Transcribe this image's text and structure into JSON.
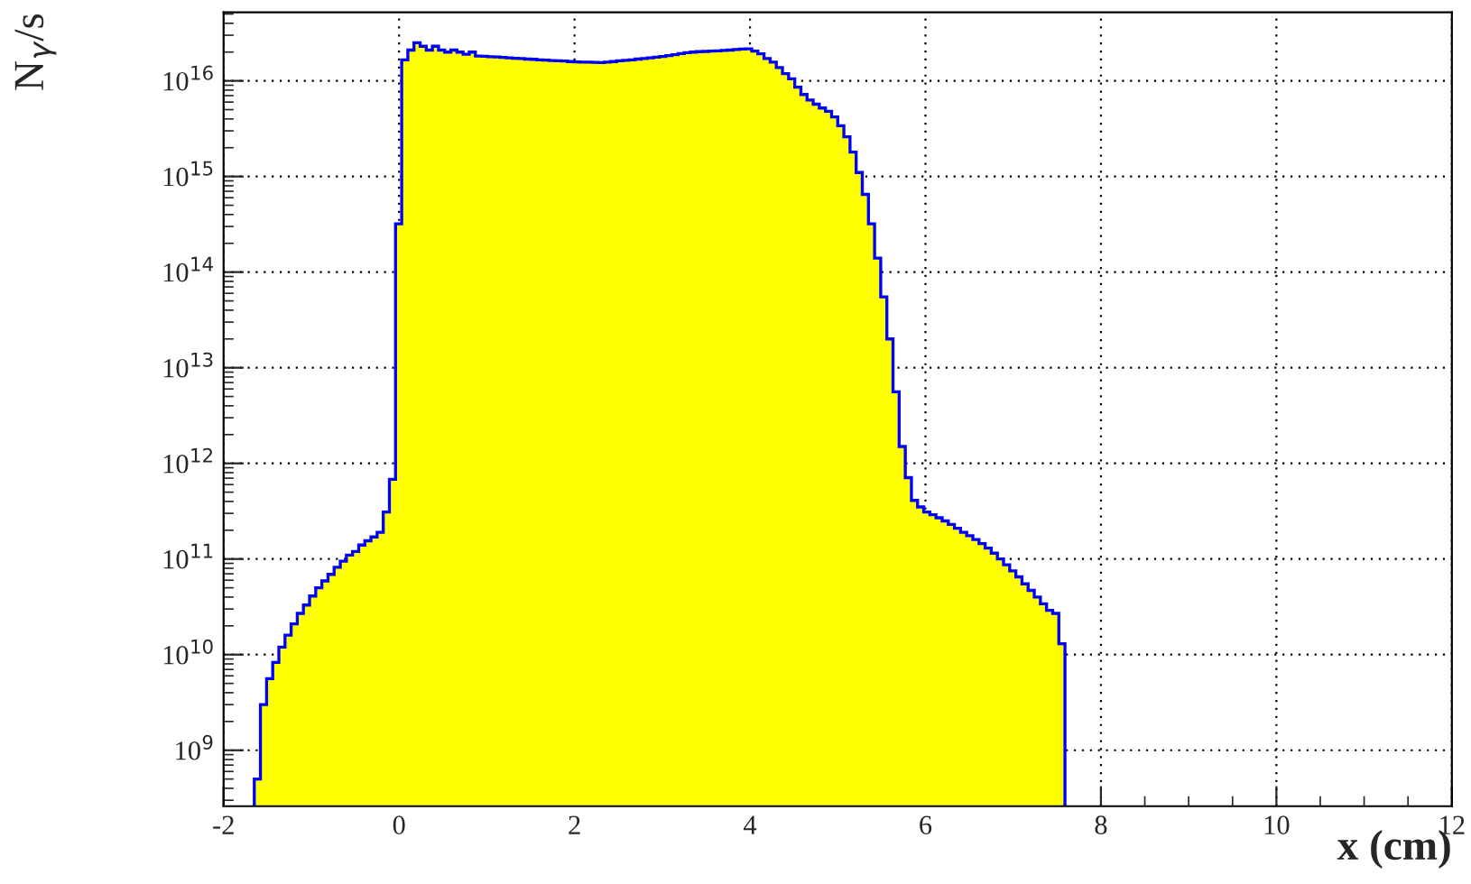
{
  "chart_data": {
    "type": "histogram",
    "xlabel": "x (cm)",
    "ylabel": "N$_{γ}$/s",
    "bins": [
      -1.65,
      -1.58,
      -1.51,
      -1.44,
      -1.37,
      -1.3,
      -1.23,
      -1.16,
      -1.09,
      -1.02,
      -0.95,
      -0.88,
      -0.81,
      -0.74,
      -0.67,
      -0.6,
      -0.53,
      -0.46,
      -0.39,
      -0.32,
      -0.25,
      -0.18,
      -0.11,
      -0.04,
      0.03,
      0.1,
      0.17,
      0.24,
      0.31,
      0.38,
      0.45,
      0.52,
      0.59,
      0.66,
      0.73,
      0.8,
      0.87,
      0.94,
      1.01,
      1.08,
      1.15,
      1.22,
      1.29,
      1.36,
      1.43,
      1.5,
      1.57,
      1.64,
      1.71,
      1.78,
      1.85,
      1.92,
      1.99,
      2.06,
      2.13,
      2.2,
      2.27,
      2.34,
      2.41,
      2.48,
      2.55,
      2.62,
      2.69,
      2.76,
      2.83,
      2.9,
      2.97,
      3.04,
      3.11,
      3.18,
      3.25,
      3.32,
      3.39,
      3.46,
      3.53,
      3.6,
      3.67,
      3.74,
      3.81,
      3.88,
      3.95,
      4.02,
      4.09,
      4.16,
      4.23,
      4.3,
      4.37,
      4.44,
      4.51,
      4.58,
      4.65,
      4.72,
      4.79,
      4.86,
      4.93,
      5,
      5.07,
      5.14,
      5.21,
      5.28,
      5.35,
      5.42,
      5.49,
      5.56,
      5.63,
      5.7,
      5.77,
      5.84,
      5.91,
      5.98,
      6.05,
      6.12,
      6.19,
      6.26,
      6.33,
      6.4,
      6.47,
      6.54,
      6.61,
      6.68,
      6.75,
      6.82,
      6.89,
      6.96,
      7.03,
      7.1,
      7.17,
      7.24,
      7.31,
      7.38,
      7.45,
      7.52,
      7.59
    ],
    "values": [
      500000000.0,
      3000000000.0,
      5600000000.0,
      8300000000.0,
      12000000000.0,
      16000000000.0,
      21000000000.0,
      27000000000.0,
      33000000000.0,
      41000000000.0,
      50000000000.0,
      59000000000.0,
      69000000000.0,
      82000000000.0,
      95000000000.0,
      110000000000.0,
      120000000000.0,
      140000000000.0,
      155000000000.0,
      170000000000.0,
      190000000000.0,
      310000000000.0,
      680000000000.0,
      320000000000000.0,
      1.66e+16,
      2.1e+16,
      2.5e+16,
      2.3e+16,
      2.1e+16,
      2.3e+16,
      2.1e+16,
      2e+16,
      2.1e+16,
      2e+16,
      1.9e+16,
      2e+16,
      1.82e+16,
      1.81e+16,
      1.79e+16,
      1.78e+16,
      1.76e+16,
      1.74e+16,
      1.72e+16,
      1.71e+16,
      1.69e+16,
      1.68e+16,
      1.66e+16,
      1.65e+16,
      1.63e+16,
      1.62e+16,
      1.61e+16,
      1.59e+16,
      1.58e+16,
      1.57e+16,
      1.57e+16,
      1.56e+16,
      1.55e+16,
      1.57e+16,
      1.59e+16,
      1.62e+16,
      1.64e+16,
      1.66e+16,
      1.69e+16,
      1.71e+16,
      1.74e+16,
      1.77e+16,
      1.8e+16,
      1.84e+16,
      1.88e+16,
      1.93e+16,
      1.97e+16,
      2e+16,
      2.02e+16,
      2.03e+16,
      2.05e+16,
      2.06e+16,
      2.08e+16,
      2.1e+16,
      2.13e+16,
      2.15e+16,
      2.16e+16,
      2.05e+16,
      1.92e+16,
      1.71e+16,
      1.57e+16,
      1.38e+16,
      1.19e+16,
      1.05e+16,
      8600000000000000.0,
      7200000000000000.0,
      6300000000000000.0,
      5700000000000000.0,
      5200000000000000.0,
      4800000000000000.0,
      4200000000000000.0,
      3400000000000000.0,
      2600000000000000.0,
      1800000000000000.0,
      1100000000000000.0,
      650000000000000.0,
      320000000000000.0,
      140000000000000.0,
      55000000000000.0,
      20000000000000.0,
      5600000000000.0,
      1500000000000.0,
      710000000000.0,
      410000000000.0,
      350000000000.0,
      310000000000.0,
      290000000000.0,
      270000000000.0,
      250000000000.0,
      230000000000.0,
      210000000000.0,
      190000000000.0,
      175000000000.0,
      160000000000.0,
      145000000000.0,
      130000000000.0,
      115000000000.0,
      100000000000.0,
      87000000000.0,
      75000000000.0,
      65000000000.0,
      55000000000.0,
      47000000000.0,
      40000000000.0,
      34000000000.0,
      29000000000.0,
      27000000000.0,
      13000000000.0
    ],
    "color": "#ffff00",
    "log": "y",
    "grid": true,
    "xlim": [
      -2,
      12
    ],
    "xticks": [
      -2,
      0,
      2,
      4,
      6,
      8,
      10,
      12
    ],
    "ylim": [
      260000000.0,
      5.2e+16
    ],
    "yticks": [
      {
        "value": 1000000000.0,
        "label": "10$^{9}$"
      },
      {
        "value": 10000000000.0,
        "label": "10$^{10}$"
      },
      {
        "value": 100000000000.0,
        "label": "10$^{11}$"
      },
      {
        "value": 1000000000000.0,
        "label": "10$^{12}$"
      },
      {
        "value": 10000000000000.0,
        "label": "10$^{13}$"
      },
      {
        "value": 100000000000000.0,
        "label": "10$^{14}$"
      },
      {
        "value": 1000000000000000.0,
        "label": "10$^{15}$"
      },
      {
        "value": 1e+16,
        "label": "10$^{16}$"
      }
    ]
  }
}
